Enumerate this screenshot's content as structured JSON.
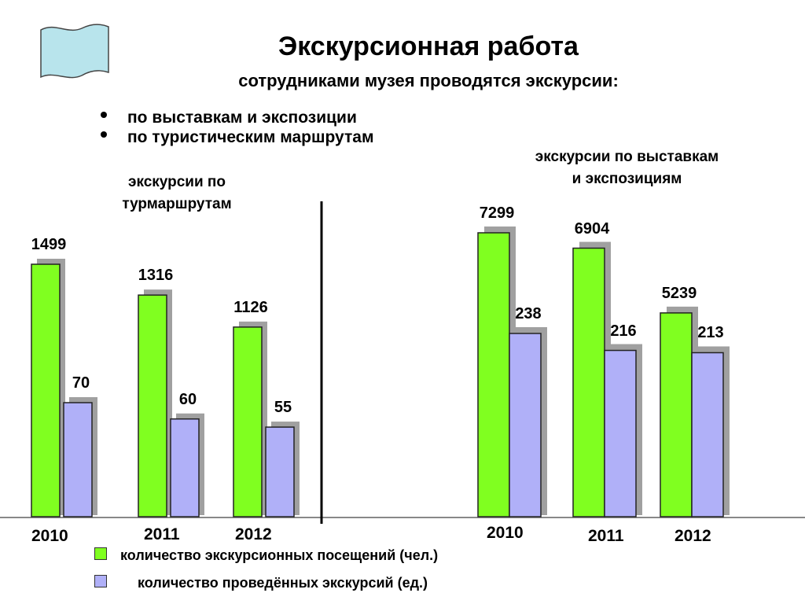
{
  "title": "Экскурсионная работа",
  "subtitle": "сотрудниками музея проводятся экскурсии:",
  "bullets": [
    "по выставкам и экспозиции",
    "по туристическим маршрутам"
  ],
  "legend": {
    "visits": "количество экскурсионных посещений (чел.)",
    "tours": "количество проведённых экскурсий (ед.)"
  },
  "colors": {
    "visits": "#80ff20",
    "tours": "#b0b0f8",
    "shadow": "#a0a0a0"
  },
  "icon": "scroll-banner-icon",
  "chart_data": [
    {
      "type": "bar",
      "title": "экскурсии по турмаршрутам",
      "title_lines": [
        "экскурсии по",
        "турмаршрутам"
      ],
      "categories": [
        "2010",
        "2011",
        "2012"
      ],
      "series": [
        {
          "name": "количество экскурсионных посещений (чел.)",
          "values": [
            1499,
            1316,
            1126
          ]
        },
        {
          "name": "количество проведённых экскурсий (ед.)",
          "values": [
            70,
            60,
            55
          ]
        }
      ]
    },
    {
      "type": "bar",
      "title": "экскурсии по выставкам и экспозициям",
      "title_lines": [
        "экскурсии по выставкам",
        "и экспозициям"
      ],
      "categories": [
        "2010",
        "2011",
        "2012"
      ],
      "series": [
        {
          "name": "количество экскурсионных посещений (чел.)",
          "values": [
            7299,
            6904,
            5239
          ]
        },
        {
          "name": "количество проведённых экскурсий (ед.)",
          "values": [
            238,
            216,
            213
          ]
        }
      ]
    }
  ]
}
